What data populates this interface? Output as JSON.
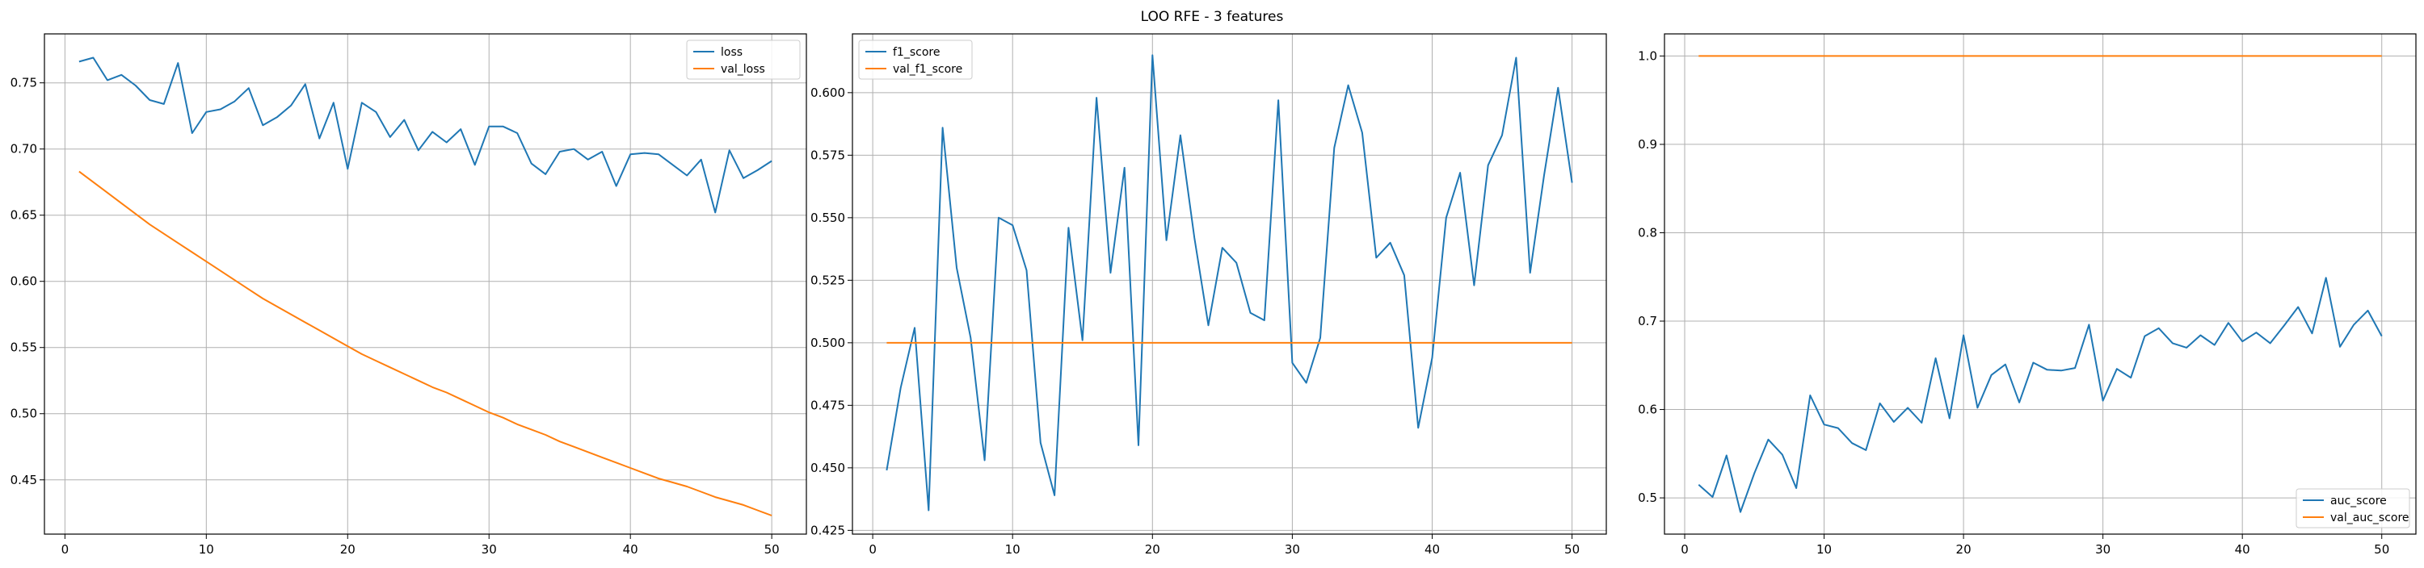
{
  "figure": {
    "title": "LOO RFE - 3 features"
  },
  "colors": {
    "blue": "#1f77b4",
    "orange": "#ff7f0e",
    "grid": "#b0b0b0"
  },
  "chart_data": [
    {
      "type": "line",
      "title": "",
      "xlabel": "",
      "ylabel": "",
      "grid": true,
      "legend_position": "top-right",
      "xlim": [
        -1.45,
        52.45
      ],
      "ylim": [
        0.409,
        0.787
      ],
      "xticks": [
        0,
        10,
        20,
        30,
        40,
        50
      ],
      "yticks": [
        0.45,
        0.5,
        0.55,
        0.6,
        0.65,
        0.7,
        0.75
      ],
      "ytick_labels": [
        "0.45",
        "0.50",
        "0.55",
        "0.60",
        "0.65",
        "0.70",
        "0.75"
      ],
      "x": [
        1,
        2,
        3,
        4,
        5,
        6,
        7,
        8,
        9,
        10,
        11,
        12,
        13,
        14,
        15,
        16,
        17,
        18,
        19,
        20,
        21,
        22,
        23,
        24,
        25,
        26,
        27,
        28,
        29,
        30,
        31,
        32,
        33,
        34,
        35,
        36,
        37,
        38,
        39,
        40,
        41,
        42,
        43,
        44,
        45,
        46,
        47,
        48,
        49,
        50
      ],
      "series": [
        {
          "name": "loss",
          "color": "#1f77b4",
          "values": [
            0.766,
            0.769,
            0.752,
            0.756,
            0.748,
            0.737,
            0.734,
            0.765,
            0.712,
            0.728,
            0.73,
            0.736,
            0.746,
            0.718,
            0.724,
            0.733,
            0.749,
            0.708,
            0.735,
            0.685,
            0.735,
            0.728,
            0.709,
            0.722,
            0.699,
            0.713,
            0.705,
            0.715,
            0.688,
            0.717,
            0.717,
            0.712,
            0.689,
            0.681,
            0.698,
            0.7,
            0.692,
            0.698,
            0.672,
            0.696,
            0.697,
            0.696,
            0.688,
            0.68,
            0.692,
            0.652,
            0.699,
            0.678,
            0.684,
            0.691
          ]
        },
        {
          "name": "val_loss",
          "color": "#ff7f0e",
          "values": [
            0.683,
            0.675,
            0.667,
            0.659,
            0.651,
            0.643,
            0.636,
            0.629,
            0.622,
            0.615,
            0.608,
            0.601,
            0.594,
            0.587,
            0.581,
            0.575,
            0.569,
            0.563,
            0.557,
            0.551,
            0.545,
            0.54,
            0.535,
            0.53,
            0.525,
            0.52,
            0.516,
            0.511,
            0.506,
            0.501,
            0.497,
            0.492,
            0.488,
            0.484,
            0.479,
            0.475,
            0.471,
            0.467,
            0.463,
            0.459,
            0.455,
            0.451,
            0.448,
            0.445,
            0.441,
            0.437,
            0.434,
            0.431,
            0.427,
            0.423
          ]
        }
      ]
    },
    {
      "type": "line",
      "title": "",
      "xlabel": "",
      "ylabel": "",
      "grid": true,
      "legend_position": "top-left",
      "xlim": [
        -1.45,
        52.45
      ],
      "ylim": [
        0.4235,
        0.6235
      ],
      "xticks": [
        0,
        10,
        20,
        30,
        40,
        50
      ],
      "yticks": [
        0.425,
        0.45,
        0.475,
        0.5,
        0.525,
        0.55,
        0.575,
        0.6
      ],
      "ytick_labels": [
        "0.425",
        "0.450",
        "0.475",
        "0.500",
        "0.525",
        "0.550",
        "0.575",
        "0.600"
      ],
      "x": [
        1,
        2,
        3,
        4,
        5,
        6,
        7,
        8,
        9,
        10,
        11,
        12,
        13,
        14,
        15,
        16,
        17,
        18,
        19,
        20,
        21,
        22,
        23,
        24,
        25,
        26,
        27,
        28,
        29,
        30,
        31,
        32,
        33,
        34,
        35,
        36,
        37,
        38,
        39,
        40,
        41,
        42,
        43,
        44,
        45,
        46,
        47,
        48,
        49,
        50
      ],
      "series": [
        {
          "name": "f1_score",
          "color": "#1f77b4",
          "values": [
            0.449,
            0.482,
            0.506,
            0.433,
            0.586,
            0.53,
            0.502,
            0.453,
            0.55,
            0.547,
            0.529,
            0.46,
            0.439,
            0.546,
            0.501,
            0.598,
            0.528,
            0.57,
            0.459,
            0.615,
            0.541,
            0.583,
            0.542,
            0.507,
            0.538,
            0.532,
            0.512,
            0.509,
            0.597,
            0.492,
            0.484,
            0.502,
            0.578,
            0.603,
            0.584,
            0.534,
            0.54,
            0.527,
            0.466,
            0.494,
            0.55,
            0.568,
            0.523,
            0.571,
            0.583,
            0.614,
            0.528,
            0.567,
            0.602,
            0.564
          ]
        },
        {
          "name": "val_f1_score",
          "color": "#ff7f0e",
          "values": [
            0.5,
            0.5,
            0.5,
            0.5,
            0.5,
            0.5,
            0.5,
            0.5,
            0.5,
            0.5,
            0.5,
            0.5,
            0.5,
            0.5,
            0.5,
            0.5,
            0.5,
            0.5,
            0.5,
            0.5,
            0.5,
            0.5,
            0.5,
            0.5,
            0.5,
            0.5,
            0.5,
            0.5,
            0.5,
            0.5,
            0.5,
            0.5,
            0.5,
            0.5,
            0.5,
            0.5,
            0.5,
            0.5,
            0.5,
            0.5,
            0.5,
            0.5,
            0.5,
            0.5,
            0.5,
            0.5,
            0.5,
            0.5,
            0.5,
            0.5
          ]
        }
      ]
    },
    {
      "type": "line",
      "title": "",
      "xlabel": "",
      "ylabel": "",
      "grid": true,
      "legend_position": "bottom-right",
      "xlim": [
        -1.45,
        52.45
      ],
      "ylim": [
        0.459,
        1.025
      ],
      "xticks": [
        0,
        10,
        20,
        30,
        40,
        50
      ],
      "yticks": [
        0.5,
        0.6,
        0.7,
        0.8,
        0.9,
        1.0
      ],
      "ytick_labels": [
        "0.5",
        "0.6",
        "0.7",
        "0.8",
        "0.9",
        "1.0"
      ],
      "x": [
        1,
        2,
        3,
        4,
        5,
        6,
        7,
        8,
        9,
        10,
        11,
        12,
        13,
        14,
        15,
        16,
        17,
        18,
        19,
        20,
        21,
        22,
        23,
        24,
        25,
        26,
        27,
        28,
        29,
        30,
        31,
        32,
        33,
        34,
        35,
        36,
        37,
        38,
        39,
        40,
        41,
        42,
        43,
        44,
        45,
        46,
        47,
        48,
        49,
        50
      ],
      "series": [
        {
          "name": "auc_score",
          "color": "#1f77b4",
          "values": [
            0.515,
            0.501,
            0.548,
            0.484,
            0.528,
            0.566,
            0.549,
            0.511,
            0.616,
            0.583,
            0.579,
            0.562,
            0.554,
            0.607,
            0.586,
            0.602,
            0.585,
            0.658,
            0.59,
            0.684,
            0.602,
            0.639,
            0.651,
            0.608,
            0.653,
            0.645,
            0.644,
            0.647,
            0.696,
            0.61,
            0.646,
            0.636,
            0.683,
            0.692,
            0.675,
            0.67,
            0.684,
            0.673,
            0.698,
            0.677,
            0.687,
            0.675,
            0.695,
            0.716,
            0.686,
            0.749,
            0.671,
            0.696,
            0.712,
            0.683
          ]
        },
        {
          "name": "val_auc_score",
          "color": "#ff7f0e",
          "values": [
            1,
            1,
            1,
            1,
            1,
            1,
            1,
            1,
            1,
            1,
            1,
            1,
            1,
            1,
            1,
            1,
            1,
            1,
            1,
            1,
            1,
            1,
            1,
            1,
            1,
            1,
            1,
            1,
            1,
            1,
            1,
            1,
            1,
            1,
            1,
            1,
            1,
            1,
            1,
            1,
            1,
            1,
            1,
            1,
            1,
            1,
            1,
            1,
            1,
            1
          ]
        }
      ]
    }
  ]
}
